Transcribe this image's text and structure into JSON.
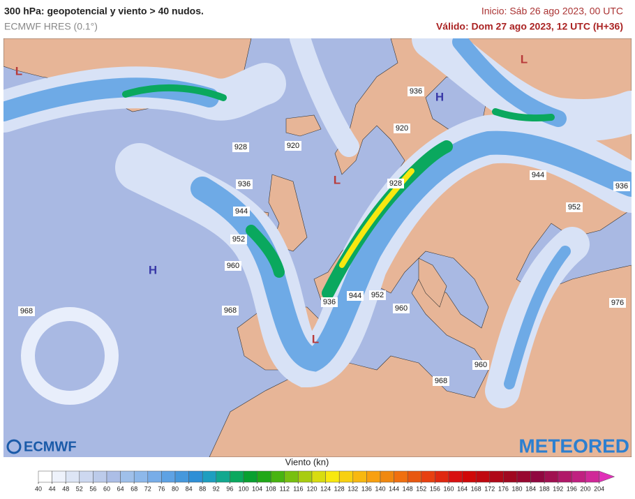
{
  "header": {
    "title": "300 hPa: geopotencial y viento > 40 nudos.",
    "model": "ECMWF HRES (0.1°)",
    "init": "Inicio: Sáb 26 ago 2023, 00 UTC",
    "valid": "Válido: Dom 27 ago 2023, 12 UTC (H+36)"
  },
  "map": {
    "pressure_centers": [
      "L",
      "H",
      "L",
      "H",
      "L",
      "L"
    ],
    "contour_labels": [
      928,
      920,
      936,
      944,
      952,
      960,
      968,
      968,
      936,
      920,
      928,
      944,
      952,
      936,
      944,
      952,
      960,
      936,
      960,
      968,
      976
    ],
    "logos": [
      "ECMWF",
      "METEORED"
    ]
  },
  "colorbar": {
    "title": "Viento (kn)",
    "ticks": [
      40,
      44,
      48,
      52,
      56,
      60,
      64,
      68,
      72,
      76,
      80,
      84,
      88,
      92,
      96,
      100,
      104,
      108,
      112,
      116,
      120,
      124,
      128,
      132,
      136,
      140,
      144,
      148,
      152,
      156,
      160,
      164,
      168,
      172,
      176,
      180,
      184,
      188,
      192,
      196,
      200,
      204
    ],
    "colors": [
      "#ffffff",
      "#eef2fb",
      "#dde5f5",
      "#cdd8f0",
      "#bccbea",
      "#acbee6",
      "#9fc0ea",
      "#8db8ea",
      "#78ade8",
      "#5ea2e4",
      "#4698dc",
      "#2f8fd6",
      "#1e9ec0",
      "#12a88f",
      "#0aa85e",
      "#08a030",
      "#20a818",
      "#48b410",
      "#78c010",
      "#a8cc10",
      "#d8dc10",
      "#f8e810",
      "#f8d010",
      "#f8b810",
      "#f8a010",
      "#f08810",
      "#f07010",
      "#e85810",
      "#e84010",
      "#e02810",
      "#d81010",
      "#d00808",
      "#c00810",
      "#b00818",
      "#a00820",
      "#980830",
      "#900840",
      "#a01050",
      "#b01868",
      "#c02080",
      "#d02898",
      "#e030b8"
    ]
  }
}
